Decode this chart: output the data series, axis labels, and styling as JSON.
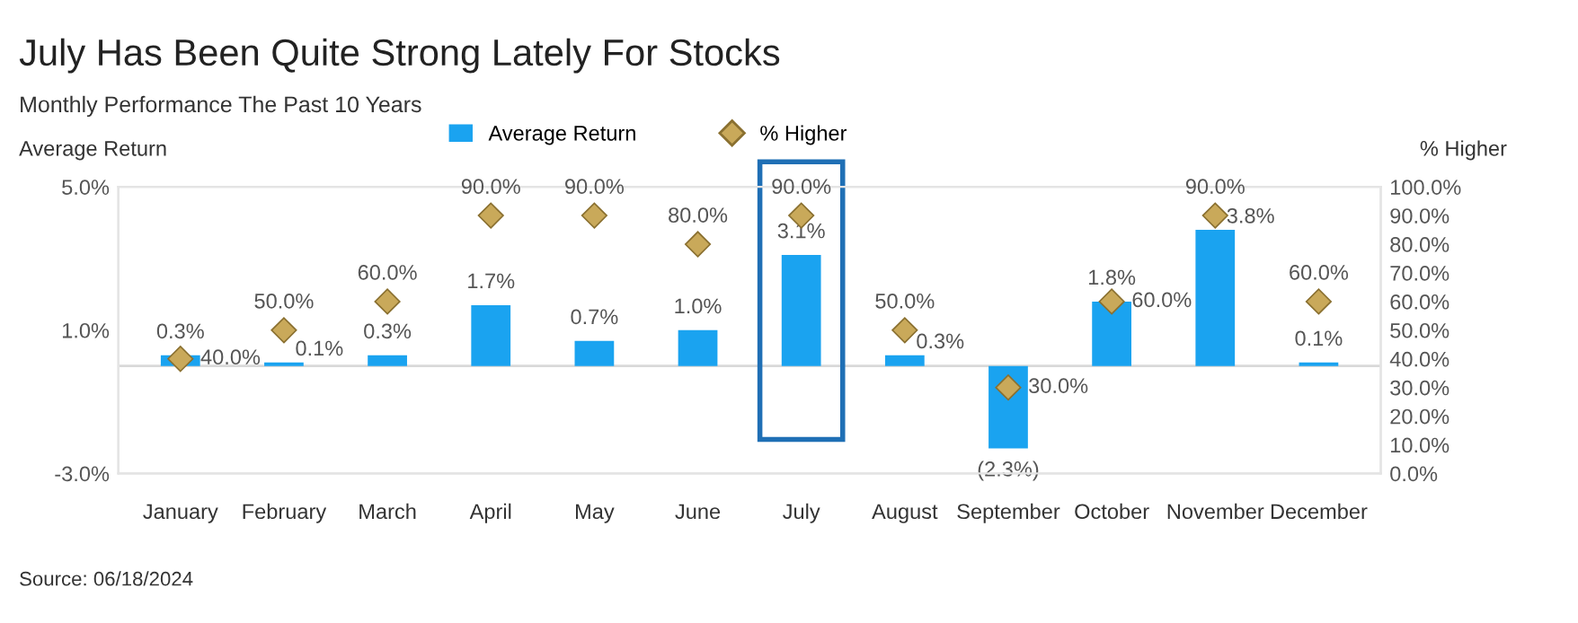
{
  "chart_data": {
    "type": "bar",
    "title": "July Has Been Quite Strong Lately For Stocks",
    "subtitle": "Monthly Performance The Past 10 Years",
    "ylabel": "Average Return",
    "y2label": "% Higher",
    "categories": [
      "January",
      "February",
      "March",
      "April",
      "May",
      "June",
      "July",
      "August",
      "September",
      "October",
      "November",
      "December"
    ],
    "series": [
      {
        "name": "Average Return",
        "color": "#1aa3f0",
        "values": [
          0.3,
          0.1,
          0.3,
          1.7,
          0.7,
          1.0,
          3.1,
          0.3,
          -2.3,
          1.8,
          3.8,
          0.1
        ],
        "value_labels": [
          "0.3%",
          "0.1%",
          "0.3%",
          "1.7%",
          "0.7%",
          "1.0%",
          "3.1%",
          "0.3%",
          "(2.3%)",
          "1.8%",
          "3.8%",
          "0.1%"
        ]
      },
      {
        "name": "% Higher",
        "type": "scatter",
        "axis": "y2",
        "marker": "diamond",
        "color": "#c9a95a",
        "x": [
          "January",
          "February",
          "March",
          "April",
          "May",
          "June",
          "July",
          "August",
          "September",
          "October",
          "November",
          "December"
        ],
        "values": [
          40,
          50,
          60,
          90,
          90,
          80,
          90,
          50,
          30,
          60,
          90,
          60
        ],
        "value_labels": [
          "40.0%",
          "50.0%",
          "60.0%",
          "90.0%",
          "90.0%",
          "80.0%",
          "90.0%",
          "50.0%",
          "30.0%",
          "60.0%",
          "90.0%",
          "60.0%"
        ]
      }
    ],
    "ylim": [
      -3,
      5
    ],
    "yticks": [
      {
        "value": 5,
        "label": "5.0%"
      },
      {
        "value": 1,
        "label": "1.0%"
      },
      {
        "value": -3,
        "label": "-3.0%"
      }
    ],
    "y2lim": [
      0,
      100
    ],
    "y2ticks": [
      {
        "value": 0,
        "label": "0.0%"
      },
      {
        "value": 10,
        "label": "10.0%"
      },
      {
        "value": 20,
        "label": "20.0%"
      },
      {
        "value": 30,
        "label": "30.0%"
      },
      {
        "value": 40,
        "label": "40.0%"
      },
      {
        "value": 50,
        "label": "50.0%"
      },
      {
        "value": 60,
        "label": "60.0%"
      },
      {
        "value": 70,
        "label": "70.0%"
      },
      {
        "value": 80,
        "label": "80.0%"
      },
      {
        "value": 90,
        "label": "90.0%"
      },
      {
        "value": 100,
        "label": "100.0%"
      }
    ],
    "legend": "top",
    "grid": false,
    "annotations": [
      "Source: 06/18/2024"
    ]
  }
}
